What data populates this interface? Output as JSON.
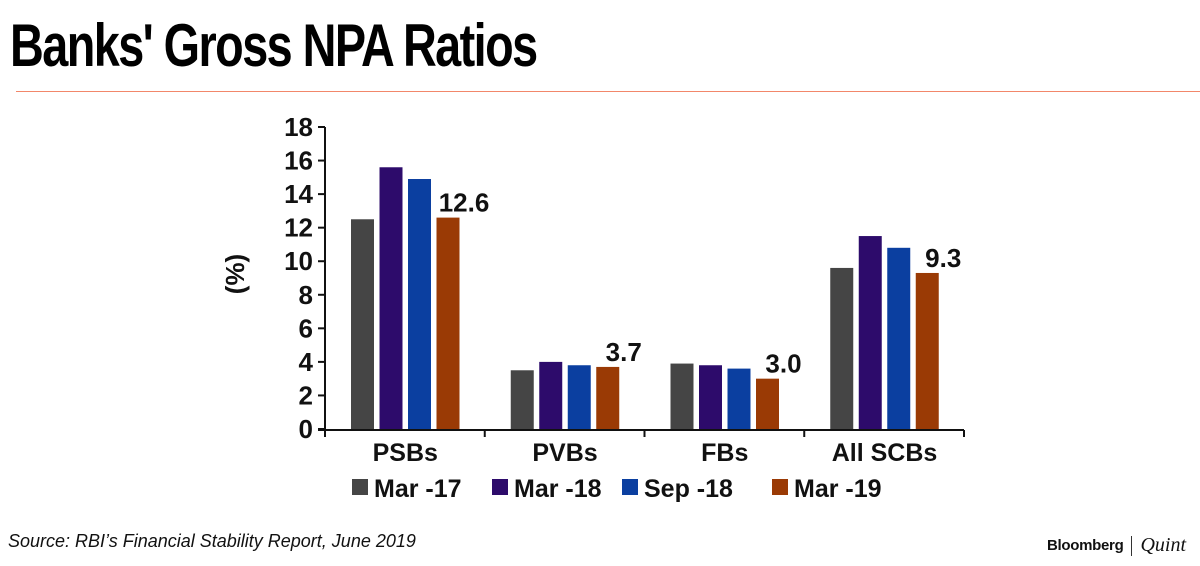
{
  "title": "Banks' Gross NPA Ratios",
  "source": "Source: RBI’s Financial Stability Report, June 2019",
  "brand": {
    "primary": "Bloomberg",
    "secondary": "Quint"
  },
  "colors": {
    "accent_rule": "#f2876a"
  },
  "chart_data": {
    "type": "bar",
    "title": "Banks' Gross NPA Ratios",
    "xlabel": "",
    "ylabel": "(%)",
    "ylim": [
      0,
      18
    ],
    "yticks": [
      0,
      2,
      4,
      6,
      8,
      10,
      12,
      14,
      16,
      18
    ],
    "categories": [
      "PSBs",
      "PVBs",
      "FBs",
      "All SCBs"
    ],
    "series": [
      {
        "name": "Mar -17",
        "color": "#454545",
        "values": [
          12.5,
          3.5,
          3.9,
          9.6
        ]
      },
      {
        "name": "Mar -18",
        "color": "#2d0b6b",
        "values": [
          15.6,
          4.0,
          3.8,
          11.5
        ]
      },
      {
        "name": "Sep -18",
        "color": "#0b3fa0",
        "values": [
          14.9,
          3.8,
          3.6,
          10.8
        ]
      },
      {
        "name": "Mar -19",
        "color": "#9a3a05",
        "values": [
          12.6,
          3.7,
          3.0,
          9.3
        ]
      }
    ],
    "data_labels": [
      {
        "category": "PSBs",
        "series": "Mar -19",
        "text": "12.6"
      },
      {
        "category": "PVBs",
        "series": "Mar -19",
        "text": "3.7"
      },
      {
        "category": "FBs",
        "series": "Mar -19",
        "text": "3.0"
      },
      {
        "category": "All SCBs",
        "series": "Mar -19",
        "text": "9.3"
      }
    ],
    "grid": false,
    "legend": "bottom"
  }
}
